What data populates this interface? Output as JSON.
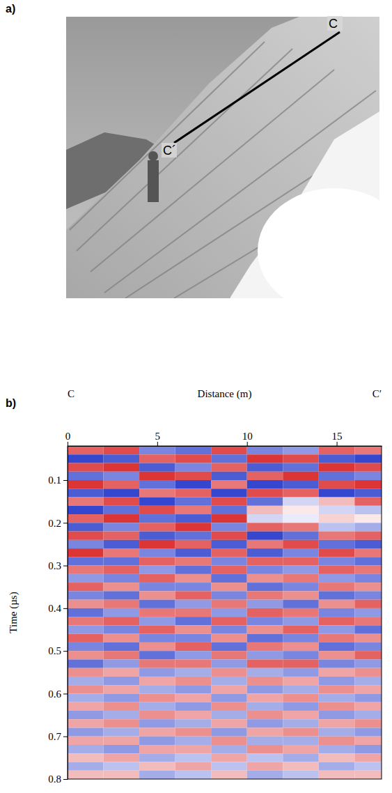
{
  "photo": {
    "panel_label": "a)",
    "line_labels": [
      "C",
      "C´"
    ]
  },
  "chart_data": {
    "type": "heatmap",
    "panel_label": "b)",
    "x_label": "Distance (m)",
    "x_end_labels": [
      "C",
      "C′"
    ],
    "y_label": "Time (µs)",
    "xlim": [
      0,
      17.5
    ],
    "xticks": [
      0,
      5,
      10,
      15
    ],
    "ylim": [
      0.02,
      0.8
    ],
    "yticks": [
      0.1,
      0.2,
      0.3,
      0.4,
      0.5,
      0.6,
      0.7,
      0.8
    ],
    "zlim": [
      -1,
      1
    ],
    "x_bins": [
      0,
      2,
      4,
      6,
      8,
      10,
      12,
      14,
      16,
      17.5
    ],
    "y_bins": [
      0.02,
      0.04,
      0.06,
      0.08,
      0.1,
      0.12,
      0.14,
      0.16,
      0.18,
      0.2,
      0.22,
      0.24,
      0.26,
      0.28,
      0.3,
      0.32,
      0.34,
      0.36,
      0.38,
      0.4,
      0.42,
      0.44,
      0.46,
      0.48,
      0.5,
      0.52,
      0.54,
      0.56,
      0.58,
      0.6,
      0.62,
      0.64,
      0.66,
      0.68,
      0.7,
      0.72,
      0.74,
      0.76,
      0.78,
      0.8
    ],
    "cells": [
      [
        0.7,
        0.8,
        -0.6,
        -0.7,
        0.8,
        -0.6,
        -0.5,
        0.7,
        0.6
      ],
      [
        -0.9,
        -0.8,
        0.7,
        0.8,
        -0.7,
        0.9,
        0.8,
        -0.8,
        -0.9
      ],
      [
        0.8,
        0.9,
        -0.8,
        -0.6,
        0.7,
        -0.8,
        -0.7,
        0.9,
        0.8
      ],
      [
        -0.7,
        -0.6,
        0.9,
        0.8,
        -0.8,
        0.7,
        0.9,
        -0.7,
        -0.6
      ],
      [
        0.9,
        0.7,
        -0.7,
        -0.9,
        0.6,
        -0.9,
        -0.8,
        0.8,
        0.9
      ],
      [
        -0.8,
        -0.9,
        0.6,
        0.7,
        -0.9,
        0.8,
        0.7,
        -0.9,
        -0.8
      ],
      [
        0.6,
        0.8,
        -0.9,
        -0.7,
        0.8,
        -0.7,
        -0.2,
        0.3,
        0.7
      ],
      [
        -0.9,
        -0.7,
        0.8,
        0.6,
        -0.7,
        0.3,
        0.1,
        -0.2,
        -0.3
      ],
      [
        0.7,
        0.9,
        -0.7,
        -0.8,
        0.9,
        -0.2,
        -0.1,
        0.2,
        0.1
      ],
      [
        -0.8,
        -0.6,
        0.7,
        0.9,
        -0.6,
        0.7,
        0.6,
        -0.3,
        -0.4
      ],
      [
        0.8,
        0.7,
        -0.8,
        -0.7,
        0.8,
        -0.9,
        -0.7,
        0.6,
        0.7
      ],
      [
        -0.6,
        -0.8,
        0.9,
        0.7,
        -0.8,
        0.6,
        0.8,
        -0.7,
        -0.8
      ],
      [
        0.9,
        0.6,
        -0.6,
        -0.8,
        0.7,
        -0.8,
        -0.6,
        0.8,
        0.6
      ],
      [
        -0.7,
        -0.7,
        0.7,
        0.6,
        -0.6,
        0.7,
        0.7,
        -0.6,
        -0.7
      ],
      [
        0.6,
        0.7,
        -0.5,
        -0.7,
        0.7,
        -0.6,
        -0.5,
        0.7,
        0.6
      ],
      [
        -0.5,
        -0.6,
        0.7,
        0.5,
        -0.7,
        0.5,
        0.6,
        -0.5,
        -0.6
      ],
      [
        0.7,
        0.5,
        -0.6,
        -0.6,
        0.5,
        -0.7,
        -0.6,
        0.6,
        0.5
      ],
      [
        -0.6,
        -0.7,
        0.5,
        0.7,
        -0.6,
        0.6,
        0.5,
        -0.7,
        -0.6
      ],
      [
        0.5,
        0.6,
        -0.7,
        -0.5,
        0.6,
        -0.5,
        -0.7,
        0.5,
        0.7
      ],
      [
        -0.7,
        -0.5,
        0.6,
        0.6,
        -0.5,
        0.7,
        0.6,
        -0.6,
        -0.5
      ],
      [
        0.6,
        0.7,
        -0.5,
        -0.7,
        0.7,
        -0.6,
        -0.5,
        0.7,
        0.6
      ],
      [
        -0.5,
        -0.6,
        0.7,
        0.5,
        -0.6,
        0.5,
        0.7,
        -0.5,
        -0.7
      ],
      [
        0.7,
        0.5,
        -0.6,
        -0.6,
        0.5,
        -0.7,
        -0.6,
        0.6,
        0.5
      ],
      [
        -0.6,
        -0.7,
        0.5,
        0.7,
        -0.7,
        0.6,
        0.5,
        -0.7,
        -0.6
      ],
      [
        0.5,
        0.6,
        -0.7,
        -0.5,
        0.6,
        -0.5,
        -0.6,
        0.5,
        0.7
      ],
      [
        -0.7,
        -0.5,
        0.6,
        0.6,
        -0.5,
        0.7,
        0.7,
        -0.6,
        -0.5
      ],
      [
        0.5,
        0.4,
        -0.5,
        -0.4,
        0.5,
        -0.4,
        -0.5,
        0.4,
        0.5
      ],
      [
        -0.4,
        -0.5,
        0.4,
        0.5,
        -0.4,
        0.5,
        0.4,
        -0.5,
        -0.4
      ],
      [
        0.5,
        0.4,
        -0.4,
        -0.5,
        0.4,
        -0.5,
        -0.4,
        0.5,
        0.4
      ],
      [
        -0.4,
        -0.5,
        0.5,
        0.4,
        -0.5,
        0.4,
        0.5,
        -0.4,
        -0.5
      ],
      [
        0.4,
        0.5,
        -0.4,
        -0.5,
        0.5,
        -0.4,
        -0.5,
        0.5,
        0.4
      ],
      [
        -0.5,
        -0.4,
        0.5,
        0.4,
        -0.4,
        0.5,
        0.4,
        -0.5,
        -0.4
      ],
      [
        0.4,
        0.5,
        -0.5,
        -0.4,
        0.4,
        -0.5,
        -0.4,
        0.4,
        0.5
      ],
      [
        -0.5,
        -0.4,
        0.4,
        0.5,
        -0.5,
        0.4,
        0.5,
        -0.4,
        -0.5
      ],
      [
        0.4,
        0.4,
        -0.5,
        -0.4,
        0.5,
        -0.4,
        -0.4,
        0.5,
        0.4
      ],
      [
        -0.4,
        -0.5,
        0.4,
        0.4,
        -0.4,
        0.5,
        0.4,
        -0.4,
        -0.5
      ],
      [
        0.3,
        0.4,
        -0.4,
        -0.3,
        0.4,
        -0.3,
        -0.4,
        0.3,
        0.4
      ],
      [
        -0.4,
        -0.3,
        0.3,
        0.4,
        -0.3,
        0.4,
        0.3,
        -0.4,
        -0.3
      ],
      [
        0.3,
        0.3,
        -0.4,
        -0.3,
        0.3,
        -0.4,
        -0.3,
        0.3,
        0.3
      ]
    ]
  }
}
